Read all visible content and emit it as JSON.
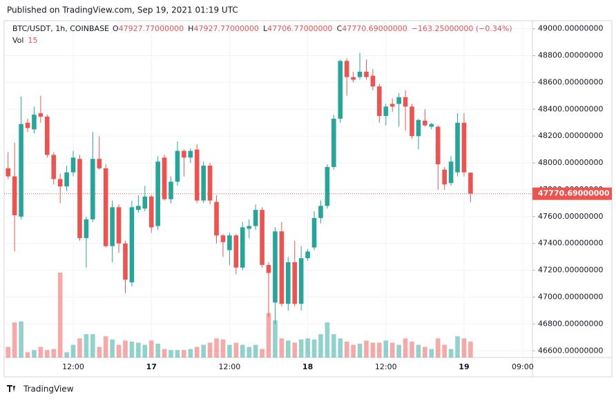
{
  "header": {
    "published": "Published on TradingView.com, Sep 19, 2021 01:19 UTC"
  },
  "legend": {
    "symbol": "BTC/USDT, 1h, COINBASE",
    "open_label": "O",
    "open": "47927.77000000",
    "high_label": "H",
    "high": "47927.77000000",
    "low_label": "L",
    "low": "47706.77000000",
    "close_label": "C",
    "close": "47770.69000000",
    "change": "−163.25000000 (−0.34%)",
    "volume_label": "Vol",
    "volume": 15
  },
  "footer": {
    "brand": "TradingView"
  },
  "chart_data": {
    "type": "candlestick",
    "categories": [
      null,
      null,
      null,
      null,
      null,
      null,
      null,
      null,
      null,
      null,
      "12:00",
      null,
      null,
      null,
      null,
      null,
      null,
      null,
      null,
      null,
      null,
      null,
      "17",
      null,
      null,
      null,
      null,
      null,
      null,
      null,
      null,
      null,
      null,
      null,
      "12:00",
      null,
      null,
      null,
      null,
      null,
      null,
      null,
      null,
      null,
      null,
      null,
      "18",
      null,
      null,
      null,
      null,
      null,
      null,
      null,
      null,
      null,
      null,
      null,
      "12:00",
      null,
      null,
      null,
      null,
      null,
      null,
      null,
      null,
      null,
      null,
      null,
      "19",
      null,
      null,
      null,
      null,
      null,
      null,
      null,
      null,
      "09:00",
      null
    ],
    "open": [
      47960,
      47900,
      47600,
      48300,
      48250,
      48370,
      48345,
      48060,
      47880,
      47825,
      47930,
      48030,
      47440,
      47580,
      48030,
      47960,
      47380,
      47670,
      47400,
      47110,
      47650,
      47660,
      47750,
      47530,
      48040,
      47730,
      47860,
      48090,
      48040,
      48100,
      47720,
      47980,
      47710,
      47460,
      47350,
      47460,
      47220,
      47510,
      47530,
      47650,
      47240,
      46960,
      47490,
      46950,
      47260,
      46950,
      47290,
      47370,
      47590,
      47680,
      47970,
      48330,
      48760,
      48640,
      48640,
      48680,
      48650,
      48570,
      48350,
      48440,
      48440,
      48490,
      48420,
      48200,
      48315,
      48270,
      48270,
      47950,
      47850,
      47930,
      48300,
      47927.77,
      null,
      null,
      null,
      null,
      null,
      null,
      null,
      null,
      null
    ],
    "high": [
      48080,
      48150,
      48495,
      48330,
      48420,
      48500,
      48360,
      48080,
      47920,
      47980,
      48090,
      48060,
      47600,
      48230,
      48200,
      47990,
      47720,
      47690,
      47420,
      47720,
      47760,
      47830,
      47760,
      48050,
      48060,
      47900,
      48160,
      48100,
      48110,
      48140,
      48010,
      48000,
      47760,
      47470,
      47480,
      47470,
      47560,
      47580,
      47690,
      47670,
      47260,
      47520,
      47560,
      47300,
      47420,
      47380,
      47360,
      47640,
      47720,
      47990,
      48360,
      48770,
      48780,
      48680,
      48820,
      48770,
      48700,
      48590,
      48440,
      48480,
      48520,
      48540,
      48440,
      48330,
      48400,
      48300,
      48280,
      47970,
      48050,
      48370,
      48370,
      47927.77,
      null,
      null,
      null,
      null,
      null,
      null,
      null,
      null,
      null
    ],
    "low": [
      47880,
      47340,
      47580,
      48230,
      48220,
      48300,
      48040,
      47840,
      47700,
      47790,
      47900,
      47420,
      47220,
      47560,
      47950,
      47370,
      47260,
      47330,
      47030,
      47080,
      47630,
      47640,
      47480,
      47500,
      47720,
      47700,
      47830,
      47900,
      48000,
      47700,
      47700,
      47690,
      47400,
      47300,
      47240,
      47170,
      47200,
      47440,
      47500,
      47220,
      46850,
      46800,
      46930,
      46900,
      46930,
      46900,
      47270,
      47350,
      47550,
      47660,
      47950,
      48300,
      48500,
      48600,
      48620,
      48620,
      48540,
      48300,
      48280,
      48380,
      48270,
      48240,
      48180,
      48100,
      48270,
      48250,
      47800,
      47800,
      47830,
      47900,
      47900,
      47706.77,
      null,
      null,
      null,
      null,
      null,
      null,
      null,
      null,
      null
    ],
    "close": [
      47900,
      47610,
      48290,
      48260,
      48360,
      48345,
      48060,
      47880,
      47825,
      47930,
      48040,
      47440,
      47580,
      48030,
      47960,
      47380,
      47670,
      47400,
      47130,
      47670,
      47680,
      47750,
      47520,
      48010,
      47730,
      47860,
      48090,
      48040,
      48090,
      47720,
      47980,
      47720,
      47460,
      47410,
      47460,
      47220,
      47520,
      47530,
      47650,
      47240,
      47180,
      47490,
      46950,
      47260,
      46950,
      47290,
      47340,
      47590,
      47680,
      47970,
      48330,
      48760,
      48640,
      48620,
      48680,
      48640,
      48570,
      48350,
      48420,
      48420,
      48490,
      48420,
      48200,
      48320,
      48280,
      48290,
      47990,
      47840,
      48010,
      48300,
      47930,
      47770.69,
      null,
      null,
      null,
      null,
      null,
      null,
      null,
      null,
      null
    ],
    "volume": [
      10,
      33,
      34,
      5,
      7,
      10,
      7,
      8,
      80,
      5,
      12,
      18,
      22,
      22,
      10,
      20,
      17,
      12,
      16,
      15,
      14,
      12,
      16,
      13,
      8,
      7,
      7,
      7,
      8,
      10,
      12,
      14,
      18,
      17,
      12,
      14,
      12,
      10,
      12,
      8,
      42,
      35,
      18,
      16,
      14,
      17,
      18,
      17,
      22,
      33,
      22,
      18,
      15,
      12,
      13,
      16,
      14,
      14,
      16,
      14,
      12,
      18,
      15,
      12,
      10,
      8,
      18,
      12,
      8,
      20,
      18,
      15,
      null,
      null,
      null,
      null,
      null,
      null,
      null,
      null,
      null
    ],
    "up_color": "#26a69a",
    "down_color": "#ef5350",
    "ylim": [
      46550,
      49060
    ],
    "yticks": [
      {
        "value": 46600,
        "label": "46600.00000000"
      },
      {
        "value": 46800,
        "label": "46800.00000000"
      },
      {
        "value": 47000,
        "label": "47000.00000000"
      },
      {
        "value": 47200,
        "label": "47200.00000000"
      },
      {
        "value": 47400,
        "label": "47400.00000000"
      },
      {
        "value": 47600,
        "label": "47600.00000000"
      },
      {
        "value": 47800,
        "label": "47800.00000000"
      },
      {
        "value": 48000,
        "label": "48000.00000000"
      },
      {
        "value": 48200,
        "label": "48200.00000000"
      },
      {
        "value": 48400,
        "label": "48400.00000000"
      },
      {
        "value": 48600,
        "label": "48600.00000000"
      },
      {
        "value": 48800,
        "label": "48800.00000000"
      },
      {
        "value": 49000,
        "label": "49000.00000000"
      }
    ],
    "last_price": {
      "value": 47770.69,
      "label": "47770.69000000"
    },
    "grid": true
  }
}
